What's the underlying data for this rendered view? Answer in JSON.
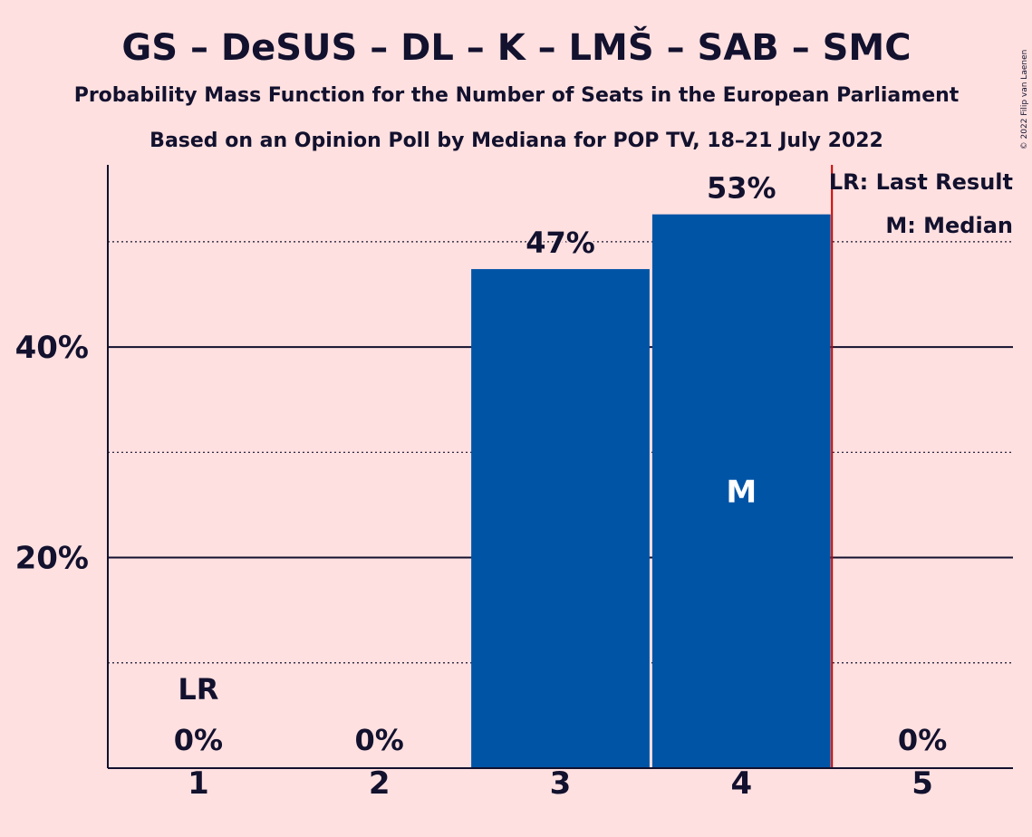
{
  "chart_data": {
    "type": "bar",
    "title": "GS – DeSUS – DL – K – LMŠ – SAB – SMC",
    "subtitle1": "Probability Mass Function for the Number of Seats in the European Parliament",
    "subtitle2": "Based on an Opinion Poll by Mediana for POP TV, 18–21 July 2022",
    "copyright": "© 2022 Filip van Laenen",
    "categories": [
      "1",
      "2",
      "3",
      "4",
      "5"
    ],
    "values": [
      0,
      0,
      47.4,
      52.6,
      0
    ],
    "value_labels": [
      "0%",
      "0%",
      "47%",
      "53%",
      "0%"
    ],
    "ylim": [
      0,
      57.3
    ],
    "y_major_ticks": [
      20,
      40
    ],
    "y_major_labels": [
      "20%",
      "40%"
    ],
    "y_minor_gridlines": [
      10,
      30,
      50
    ],
    "bar_color": "#0054A6",
    "last_result_category": "1",
    "last_result_marker": "LR",
    "median_category": "4",
    "median_marker": "M",
    "legend": {
      "last_result": "LR: Last Result",
      "median": "M: Median",
      "position": "top-right"
    },
    "colors": {
      "background": "#FFE0E0",
      "bar": "#0054A6",
      "text": "#12112e",
      "majority_line": "#cc0000"
    }
  }
}
